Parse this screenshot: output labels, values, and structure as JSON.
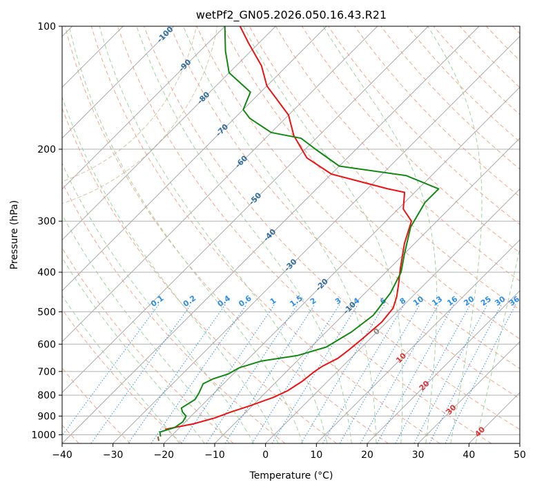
{
  "chart_data": {
    "type": "line",
    "subtype": "skew-t log-p diagram",
    "title": "wetPf2_GN05.2026.050.16.43.R21",
    "xlabel": "Temperature (°C)",
    "ylabel": "Pressure (hPa)",
    "xlim": [
      -40,
      50
    ],
    "ylim": [
      1050,
      100
    ],
    "x_ticks": [
      -40,
      -30,
      -20,
      -10,
      0,
      10,
      20,
      30,
      40,
      50
    ],
    "x_tick_labels": [
      "−40",
      "−30",
      "−20",
      "−10",
      "0",
      "10",
      "20",
      "30",
      "40",
      "50"
    ],
    "y_ticks": [
      1000,
      900,
      800,
      700,
      600,
      500,
      400,
      300,
      200,
      100
    ],
    "y_tick_labels": [
      "1000",
      "900",
      "800",
      "700",
      "600",
      "500",
      "400",
      "300",
      "200",
      "100"
    ],
    "colors": {
      "temperature": "#ee1111",
      "dewpoint": "#118811",
      "isotherm": "#aaaaaa",
      "isobar": "#b0b0b0",
      "dry_adiabat": "#f4a48a",
      "moist_adiabat": "#9ed49e",
      "mixing_ratio": "#2a8ee8",
      "isotherm_label_cold": "#2f6f9f",
      "isotherm_label_warm": "#dd3333",
      "isotherm_label_zero": "#888888",
      "circle": "#d8c4aa"
    },
    "series": [
      {
        "name": "Temperature",
        "points": [
          [
            -22.5,
            970
          ],
          [
            -18,
            940
          ],
          [
            -15,
            910
          ],
          [
            -13,
            880
          ],
          [
            -10.5,
            850
          ],
          [
            -7.5,
            810
          ],
          [
            -6,
            780
          ],
          [
            -5,
            740
          ],
          [
            -4.5,
            700
          ],
          [
            -4,
            680
          ],
          [
            -2.5,
            650
          ],
          [
            -2,
            620
          ],
          [
            -1.5,
            580
          ],
          [
            -1,
            530
          ],
          [
            -1.5,
            490
          ],
          [
            -3,
            460
          ],
          [
            -5,
            430
          ],
          [
            -8,
            390
          ],
          [
            -12,
            340
          ],
          [
            -15,
            300
          ],
          [
            -19,
            280
          ],
          [
            -22,
            255
          ],
          [
            -26,
            250
          ],
          [
            -40,
            230
          ],
          [
            -48,
            210
          ],
          [
            -55,
            185
          ],
          [
            -60,
            165
          ],
          [
            -70,
            140
          ],
          [
            -75,
            125
          ],
          [
            -82,
            110
          ],
          [
            -87,
            100
          ]
        ]
      },
      {
        "name": "Dewpoint",
        "points": [
          [
            -22,
            1010
          ],
          [
            -23,
            985
          ],
          [
            -21,
            960
          ],
          [
            -20.5,
            930
          ],
          [
            -21,
            900
          ],
          [
            -22.5,
            880
          ],
          [
            -23.5,
            860
          ],
          [
            -22.5,
            820
          ],
          [
            -23,
            790
          ],
          [
            -24,
            750
          ],
          [
            -23,
            730
          ],
          [
            -21,
            710
          ],
          [
            -20,
            685
          ],
          [
            -17,
            660
          ],
          [
            -11,
            640
          ],
          [
            -7,
            610
          ],
          [
            -5,
            560
          ],
          [
            -4,
            510
          ],
          [
            -5,
            450
          ],
          [
            -7,
            400
          ],
          [
            -10,
            360
          ],
          [
            -14,
            310
          ],
          [
            -16,
            270
          ],
          [
            -16,
            250
          ],
          [
            -25,
            232
          ],
          [
            -40,
            220
          ],
          [
            -48,
            200
          ],
          [
            -53,
            188
          ],
          [
            -60,
            182
          ],
          [
            -67,
            168
          ],
          [
            -70,
            160
          ],
          [
            -72,
            145
          ],
          [
            -80,
            130
          ],
          [
            -85,
            115
          ],
          [
            -90,
            100
          ]
        ]
      }
    ],
    "isotherm_labels": [
      "-100",
      "-90",
      "-80",
      "-70",
      "-60",
      "-50",
      "-40",
      "-30",
      "-20",
      "-10",
      "0",
      "10",
      "20",
      "30",
      "40"
    ],
    "mixing_ratio_labels": [
      "0.1",
      "0.2",
      "0.4",
      "0.6",
      "1",
      "1.5",
      "2",
      "3",
      "4",
      "6",
      "8",
      "10",
      "13",
      "16",
      "20",
      "25",
      "30",
      "36"
    ],
    "mixing_ratio_values": [
      0.1,
      0.2,
      0.4,
      0.6,
      1,
      1.5,
      2,
      3,
      4,
      6,
      8,
      10,
      13,
      16,
      20,
      25,
      30,
      36
    ],
    "grid": true
  }
}
